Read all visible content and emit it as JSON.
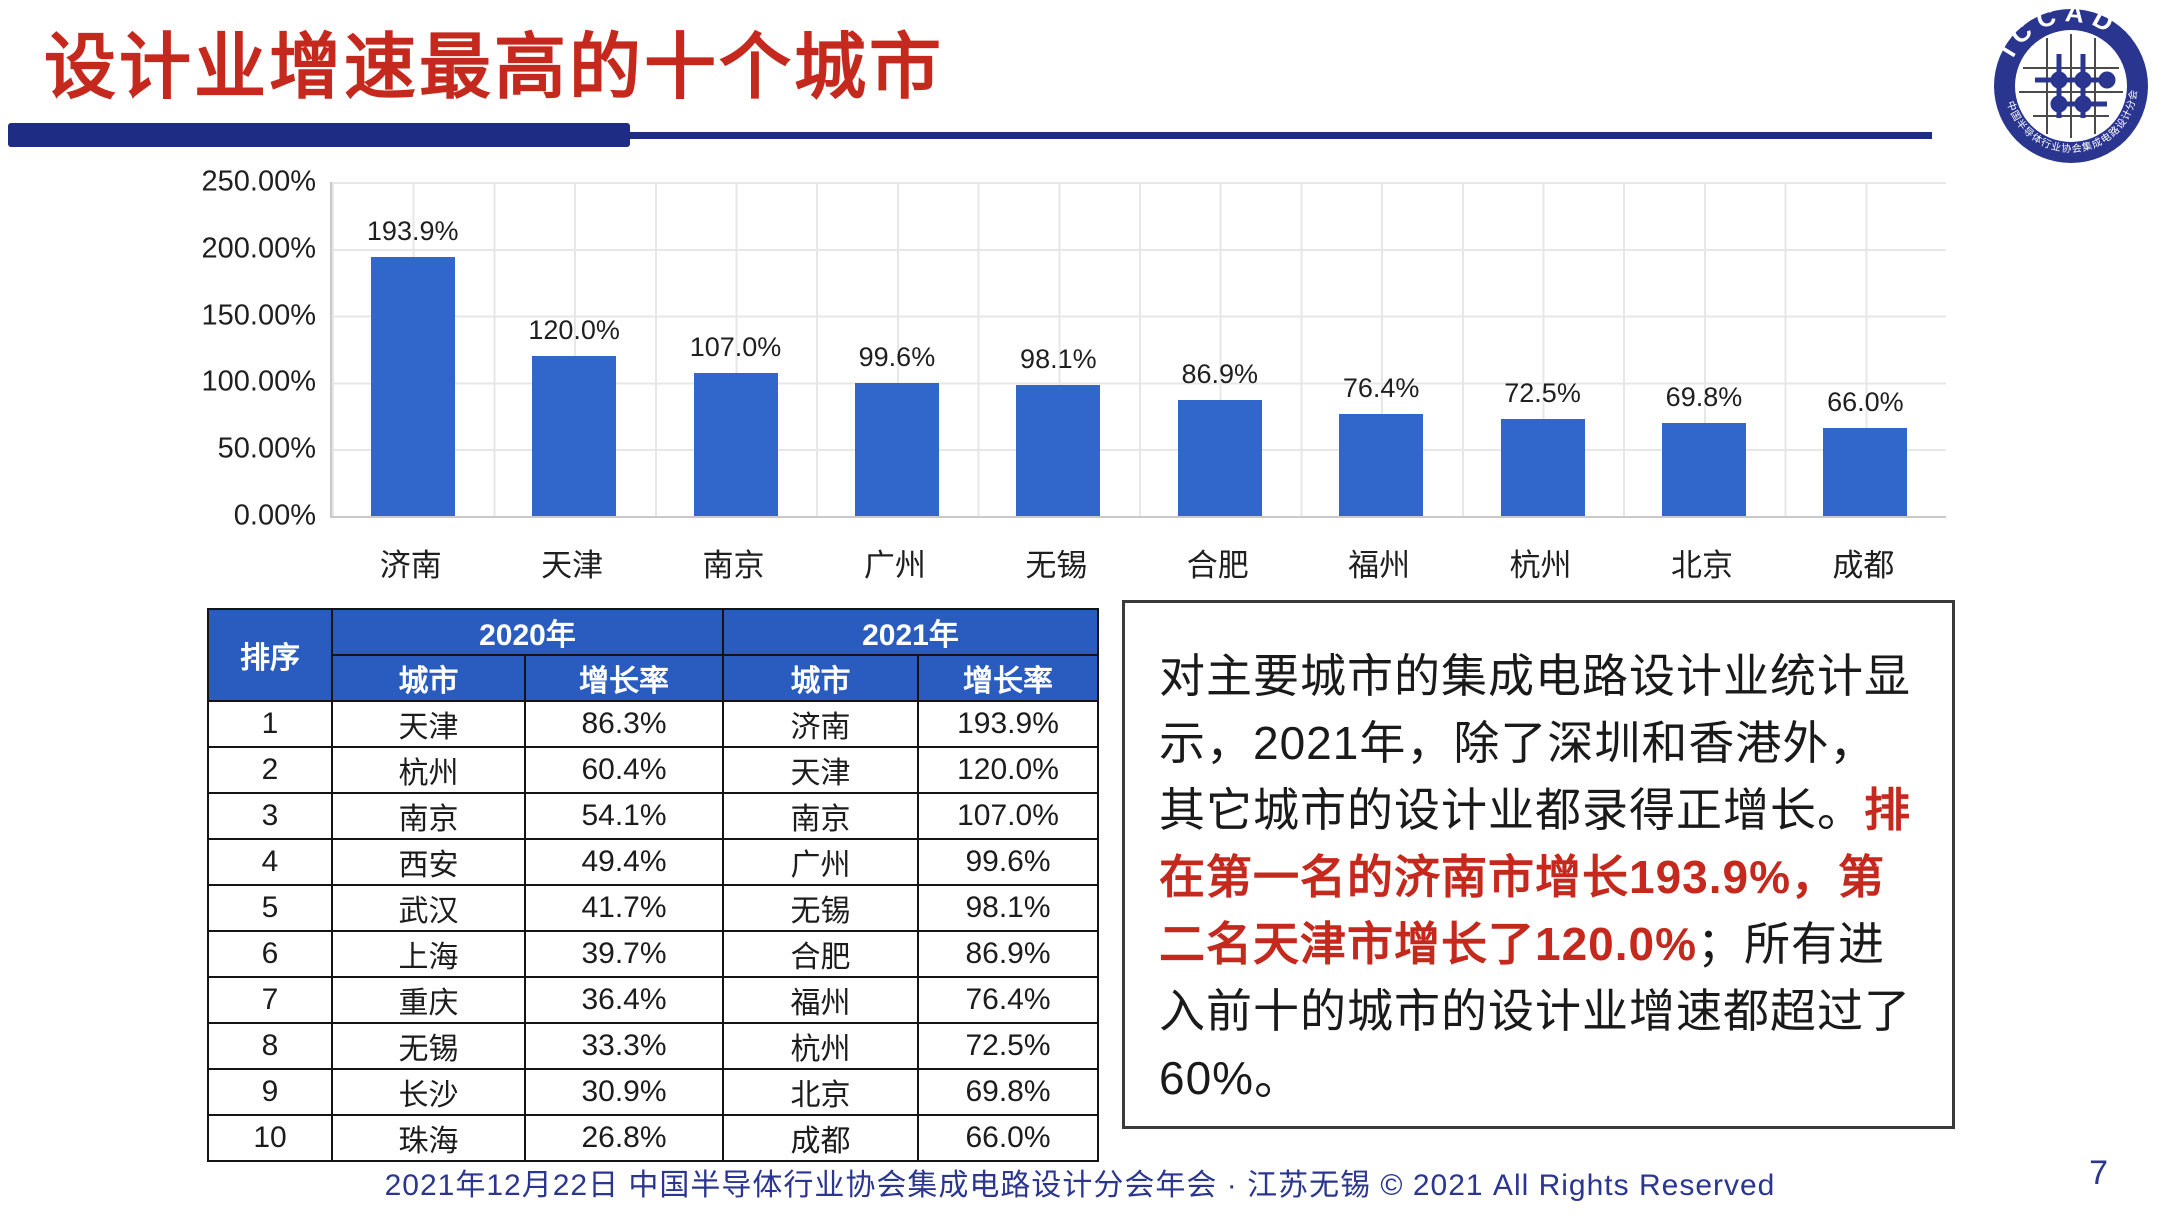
{
  "header": {
    "title": "设计业增速最高的十个城市",
    "title_color": "#C5281C",
    "accent_color": "#1F2C83",
    "logo_text": "ICCAD",
    "logo_ring_text": "中国半导体行业协会集成电路设计分会"
  },
  "chart_data": {
    "type": "bar",
    "title": "",
    "xlabel": "",
    "ylabel": "",
    "categories": [
      "济南",
      "天津",
      "南京",
      "广州",
      "无锡",
      "合肥",
      "福州",
      "杭州",
      "北京",
      "成都"
    ],
    "values": [
      193.9,
      120.0,
      107.0,
      99.6,
      98.1,
      86.9,
      76.4,
      72.5,
      69.8,
      66.0
    ],
    "labels": [
      "193.9%",
      "120.0%",
      "107.0%",
      "99.6%",
      "98.1%",
      "86.9%",
      "76.4%",
      "72.5%",
      "69.8%",
      "66.0%"
    ],
    "ylim": [
      0,
      250
    ],
    "yticks": [
      "0.00%",
      "50.00%",
      "100.00%",
      "150.00%",
      "200.00%",
      "250.00%"
    ],
    "grid": true,
    "legend": "none",
    "bar_color": "#3166CB"
  },
  "table": {
    "header_bg": "#2A5CC0",
    "rank_header": "排序",
    "group_headers": [
      "2020年",
      "2021年"
    ],
    "col_headers": [
      "城市",
      "增长率",
      "城市",
      "增长率"
    ],
    "rows": [
      [
        "1",
        "天津",
        "86.3%",
        "济南",
        "193.9%"
      ],
      [
        "2",
        "杭州",
        "60.4%",
        "天津",
        "120.0%"
      ],
      [
        "3",
        "南京",
        "54.1%",
        "南京",
        "107.0%"
      ],
      [
        "4",
        "西安",
        "49.4%",
        "广州",
        "99.6%"
      ],
      [
        "5",
        "武汉",
        "41.7%",
        "无锡",
        "98.1%"
      ],
      [
        "6",
        "上海",
        "39.7%",
        "合肥",
        "86.9%"
      ],
      [
        "7",
        "重庆",
        "36.4%",
        "福州",
        "76.4%"
      ],
      [
        "8",
        "无锡",
        "33.3%",
        "杭州",
        "72.5%"
      ],
      [
        "9",
        "长沙",
        "30.9%",
        "北京",
        "69.8%"
      ],
      [
        "10",
        "珠海",
        "26.8%",
        "成都",
        "66.0%"
      ]
    ]
  },
  "textbox": {
    "highlight_color": "#C5281C",
    "segments": [
      {
        "text": "对主要城市的集成电路设计业统计显示，2021年，除了深圳和香港外，其它城市的设计业都录得正增长。",
        "color": "#1a1a1a",
        "bold": false
      },
      {
        "text": "排在第一名的济南市增长193.9%，第二名天津市增长了120.0%",
        "color": "#C5281C",
        "bold": true
      },
      {
        "text": "；所有进入前十的城市的设计业增速都超过了60%。",
        "color": "#1a1a1a",
        "bold": false
      }
    ]
  },
  "footer": {
    "text": "2021年12月22日 中国半导体行业协会集成电路设计分会年会 · 江苏无锡 © 2021 All Rights Reserved",
    "page_number": "7",
    "color": "#2B3690"
  }
}
